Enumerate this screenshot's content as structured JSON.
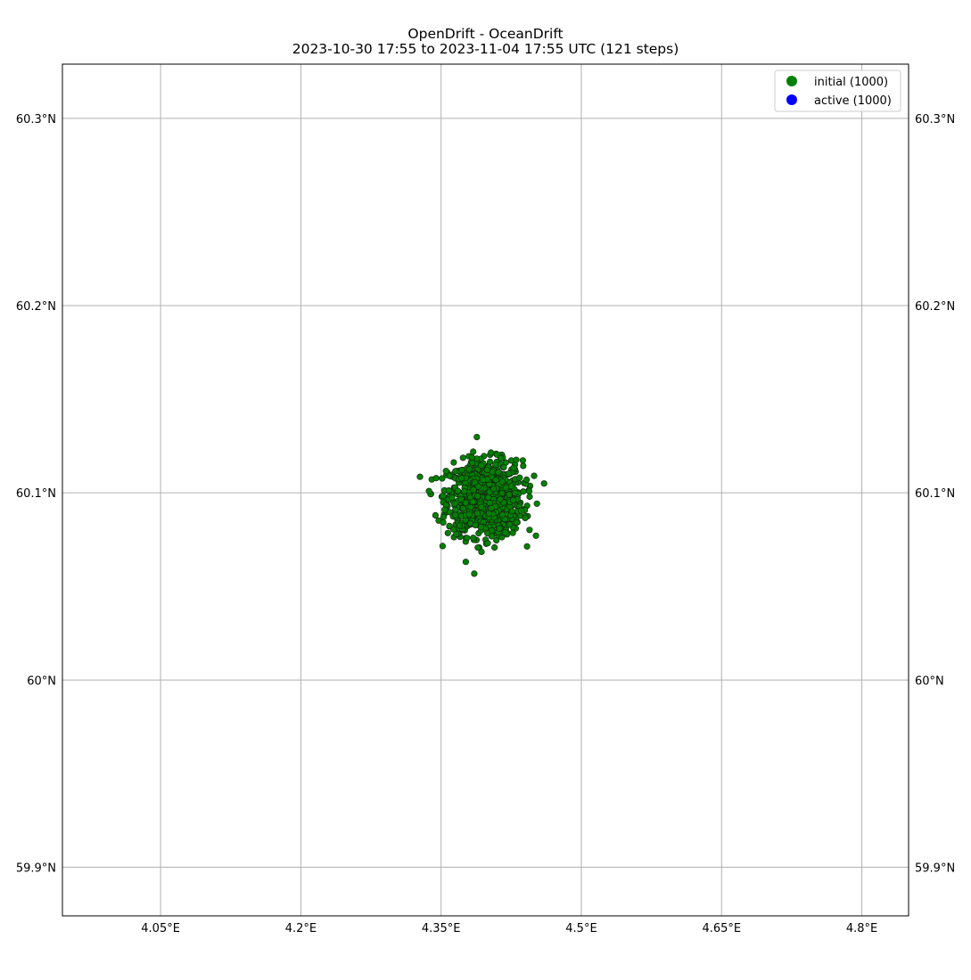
{
  "title": "OpenDrift - OceanDrift",
  "subtitle": "2023-10-30 17:55 to 2023-11-04 17:55 UTC (121 steps)",
  "chart_data": {
    "type": "scatter",
    "x_axis": {
      "range": [
        3.945,
        4.85
      ],
      "ticks": [
        4.05,
        4.2,
        4.35,
        4.5,
        4.65,
        4.8
      ],
      "tick_labels": [
        "4.05°E",
        "4.2°E",
        "4.35°E",
        "4.5°E",
        "4.65°E",
        "4.8°E"
      ]
    },
    "y_axis": {
      "range": [
        59.874,
        60.329
      ],
      "ticks": [
        59.9,
        60.0,
        60.1,
        60.2,
        60.3
      ],
      "tick_labels": [
        "59.9°N",
        "60°N",
        "60.1°N",
        "60.2°N",
        "60.3°N"
      ]
    },
    "grid": true,
    "legend": {
      "placement": "top-right",
      "entries": [
        {
          "label": "initial (1000)",
          "color": "#008000"
        },
        {
          "label": "active (1000)",
          "color": "#0000ff"
        }
      ]
    },
    "series": [
      {
        "name": "initial (1000)",
        "color": "#008000",
        "count": 1000,
        "center": {
          "lon": 4.397,
          "lat": 60.097
        },
        "spread": {
          "lon": 0.02,
          "lat": 0.01
        }
      }
    ]
  }
}
